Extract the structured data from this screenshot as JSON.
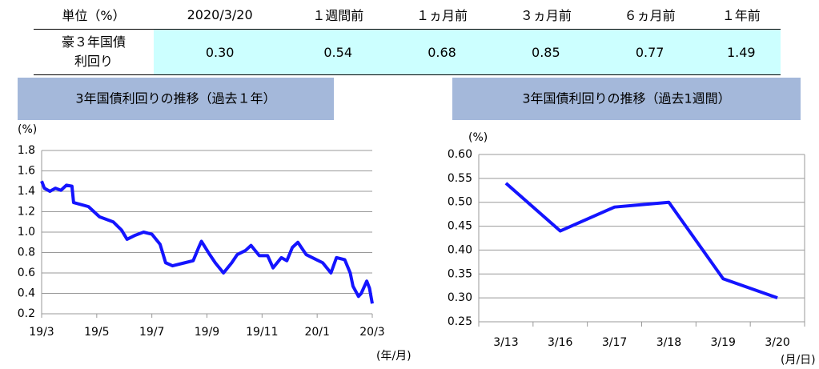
{
  "table": {
    "header": [
      "単位（%）",
      "2020/3/20",
      "１週間前",
      "１ヵ月前",
      "３ヵ月前",
      "６ヵ月前",
      "１年前"
    ],
    "rows": [
      [
        "豪３年国債利回り",
        "0.30",
        "0.54",
        "0.68",
        "0.85",
        "0.77",
        "1.49"
      ]
    ]
  },
  "chart_data": [
    {
      "type": "line",
      "title": "3年国債利回りの推移（過去１年）",
      "y_label": "(%)",
      "x_label": "(年/月)",
      "color": "#1414ff",
      "grid": true,
      "xlim": [
        0,
        12
      ],
      "xticks": [
        {
          "value": 0,
          "label": "19/3"
        },
        {
          "value": 2,
          "label": "19/5"
        },
        {
          "value": 4,
          "label": "19/7"
        },
        {
          "value": 6,
          "label": "19/9"
        },
        {
          "value": 8,
          "label": "19/11"
        },
        {
          "value": 10,
          "label": "20/1"
        },
        {
          "value": 12,
          "label": "20/3"
        }
      ],
      "ylim": [
        0.2,
        1.8
      ],
      "yticks": [
        0.2,
        0.4,
        0.6,
        0.8,
        {
          "value": 1,
          "label": "1.0"
        },
        1.2,
        1.4,
        1.6,
        1.8
      ],
      "x": [
        0,
        0.1,
        0.3,
        0.5,
        0.7,
        0.9,
        1.1,
        1.16,
        1.7,
        2.1,
        2.6,
        2.9,
        3.1,
        3.4,
        3.7,
        4.0,
        4.3,
        4.5,
        4.75,
        5.2,
        5.5,
        5.7,
        5.8,
        6.1,
        6.3,
        6.6,
        6.9,
        7.1,
        7.4,
        7.6,
        7.9,
        8.2,
        8.4,
        8.7,
        8.9,
        9.1,
        9.3,
        9.6,
        9.9,
        10.2,
        10.5,
        10.7,
        11.0,
        11.2,
        11.3,
        11.5,
        11.6,
        11.8,
        11.9,
        12.0
      ],
      "values": [
        1.5,
        1.43,
        1.4,
        1.43,
        1.41,
        1.46,
        1.45,
        1.29,
        1.25,
        1.15,
        1.1,
        1.02,
        0.93,
        0.97,
        1.0,
        0.98,
        0.88,
        0.7,
        0.67,
        0.7,
        0.72,
        0.85,
        0.91,
        0.78,
        0.7,
        0.6,
        0.7,
        0.78,
        0.82,
        0.87,
        0.77,
        0.77,
        0.65,
        0.75,
        0.72,
        0.85,
        0.9,
        0.78,
        0.74,
        0.7,
        0.6,
        0.75,
        0.73,
        0.6,
        0.47,
        0.37,
        0.4,
        0.52,
        0.45,
        0.3
      ]
    },
    {
      "type": "line",
      "title": "3年国債利回りの推移（過去1週間）",
      "y_label": "(%)",
      "x_label": "(月/日)",
      "color": "#1414ff",
      "grid": true,
      "categories": [
        "3/13",
        "3/16",
        "3/17",
        "3/18",
        "3/19",
        "3/20"
      ],
      "values": [
        0.54,
        0.44,
        0.49,
        0.5,
        0.34,
        0.3
      ],
      "ylim": [
        0.25,
        0.6
      ],
      "yticks": [
        0.25,
        {
          "value": 0.3,
          "label": "0.30"
        },
        0.35,
        {
          "value": 0.4,
          "label": "0.40"
        },
        0.45,
        {
          "value": 0.5,
          "label": "0.50"
        },
        0.55,
        {
          "value": 0.6,
          "label": "0.60"
        }
      ]
    }
  ]
}
